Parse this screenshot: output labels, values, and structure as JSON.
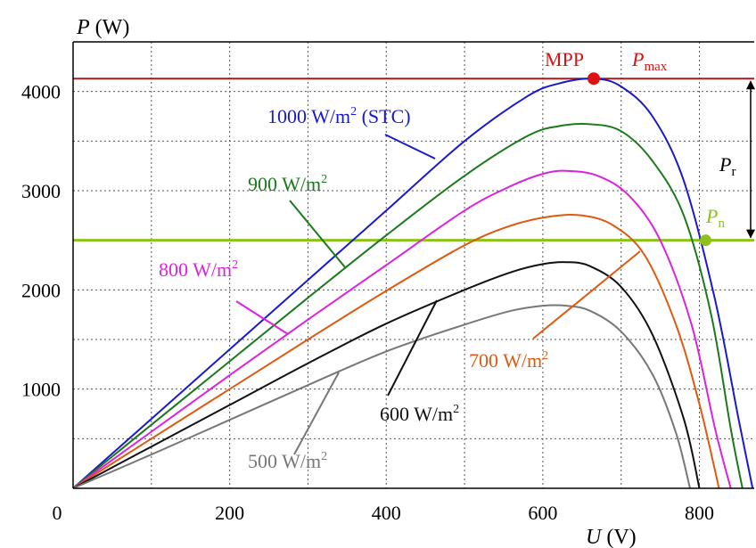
{
  "chart_data": {
    "type": "line",
    "xlabel": {
      "var": "U",
      "unit": " (V)"
    },
    "ylabel": {
      "var": "P",
      "unit": " (W)"
    },
    "xlim": [
      0,
      870
    ],
    "ylim": [
      0,
      4500
    ],
    "xticks": [
      0,
      200,
      400,
      600,
      800
    ],
    "yticks": [
      1000,
      2000,
      3000,
      4000
    ],
    "grid": true,
    "series": [
      {
        "name": "1000 W/m² (STC)",
        "color": "#1a1acc",
        "points": [
          [
            0,
            0
          ],
          [
            100,
            700
          ],
          [
            200,
            1400
          ],
          [
            300,
            2100
          ],
          [
            400,
            2800
          ],
          [
            500,
            3500
          ],
          [
            580,
            3950
          ],
          [
            620,
            4080
          ],
          [
            665,
            4130
          ],
          [
            700,
            4050
          ],
          [
            740,
            3750
          ],
          [
            780,
            3100
          ],
          [
            820,
            1900
          ],
          [
            850,
            700
          ],
          [
            868,
            0
          ]
        ]
      },
      {
        "name": "900 W/m²",
        "color": "#1a7a1a",
        "points": [
          [
            0,
            0
          ],
          [
            100,
            640
          ],
          [
            200,
            1280
          ],
          [
            300,
            1920
          ],
          [
            400,
            2550
          ],
          [
            500,
            3150
          ],
          [
            580,
            3550
          ],
          [
            620,
            3650
          ],
          [
            660,
            3670
          ],
          [
            700,
            3600
          ],
          [
            740,
            3300
          ],
          [
            780,
            2750
          ],
          [
            815,
            1750
          ],
          [
            840,
            600
          ],
          [
            855,
            0
          ]
        ]
      },
      {
        "name": "800 W/m²",
        "color": "#dd22dd",
        "points": [
          [
            0,
            0
          ],
          [
            100,
            570
          ],
          [
            200,
            1140
          ],
          [
            300,
            1700
          ],
          [
            400,
            2250
          ],
          [
            500,
            2800
          ],
          [
            560,
            3050
          ],
          [
            600,
            3170
          ],
          [
            630,
            3200
          ],
          [
            670,
            3150
          ],
          [
            710,
            2950
          ],
          [
            750,
            2500
          ],
          [
            790,
            1650
          ],
          [
            820,
            600
          ],
          [
            840,
            0
          ]
        ]
      },
      {
        "name": "700 W/m²",
        "color": "#dd5a10",
        "points": [
          [
            0,
            0
          ],
          [
            100,
            500
          ],
          [
            200,
            1000
          ],
          [
            300,
            1500
          ],
          [
            400,
            1990
          ],
          [
            500,
            2450
          ],
          [
            560,
            2650
          ],
          [
            610,
            2740
          ],
          [
            650,
            2750
          ],
          [
            690,
            2650
          ],
          [
            730,
            2350
          ],
          [
            770,
            1650
          ],
          [
            800,
            850
          ],
          [
            825,
            0
          ]
        ]
      },
      {
        "name": "600 W/m²",
        "color": "#111111",
        "points": [
          [
            0,
            0
          ],
          [
            100,
            420
          ],
          [
            200,
            840
          ],
          [
            300,
            1260
          ],
          [
            400,
            1660
          ],
          [
            500,
            2000
          ],
          [
            560,
            2180
          ],
          [
            600,
            2260
          ],
          [
            630,
            2280
          ],
          [
            660,
            2240
          ],
          [
            700,
            2030
          ],
          [
            740,
            1550
          ],
          [
            780,
            700
          ],
          [
            800,
            0
          ]
        ]
      },
      {
        "name": "500 W/m²",
        "color": "#777777",
        "points": [
          [
            0,
            0
          ],
          [
            100,
            340
          ],
          [
            200,
            690
          ],
          [
            300,
            1040
          ],
          [
            400,
            1380
          ],
          [
            500,
            1650
          ],
          [
            560,
            1790
          ],
          [
            600,
            1840
          ],
          [
            630,
            1840
          ],
          [
            660,
            1790
          ],
          [
            700,
            1580
          ],
          [
            740,
            1150
          ],
          [
            770,
            560
          ],
          [
            788,
            0
          ]
        ]
      }
    ],
    "reference_lines": {
      "pmax": {
        "y": 4130,
        "color": "#aa1a1a",
        "label_var": "P",
        "label_sub": "max"
      },
      "pn": {
        "y": 2500,
        "color": "#8cc21a",
        "label_var": "P",
        "label_sub": "n"
      }
    },
    "annotations": {
      "mpp": {
        "text": "MPP",
        "x": 665,
        "y": 4130,
        "color": "#dd1111"
      },
      "pn_point": {
        "x": 808,
        "y": 2500,
        "color": "#8cc21a"
      },
      "pr": {
        "label_var": "P",
        "label_sub": "r",
        "from": 4130,
        "to": 2500
      }
    }
  }
}
